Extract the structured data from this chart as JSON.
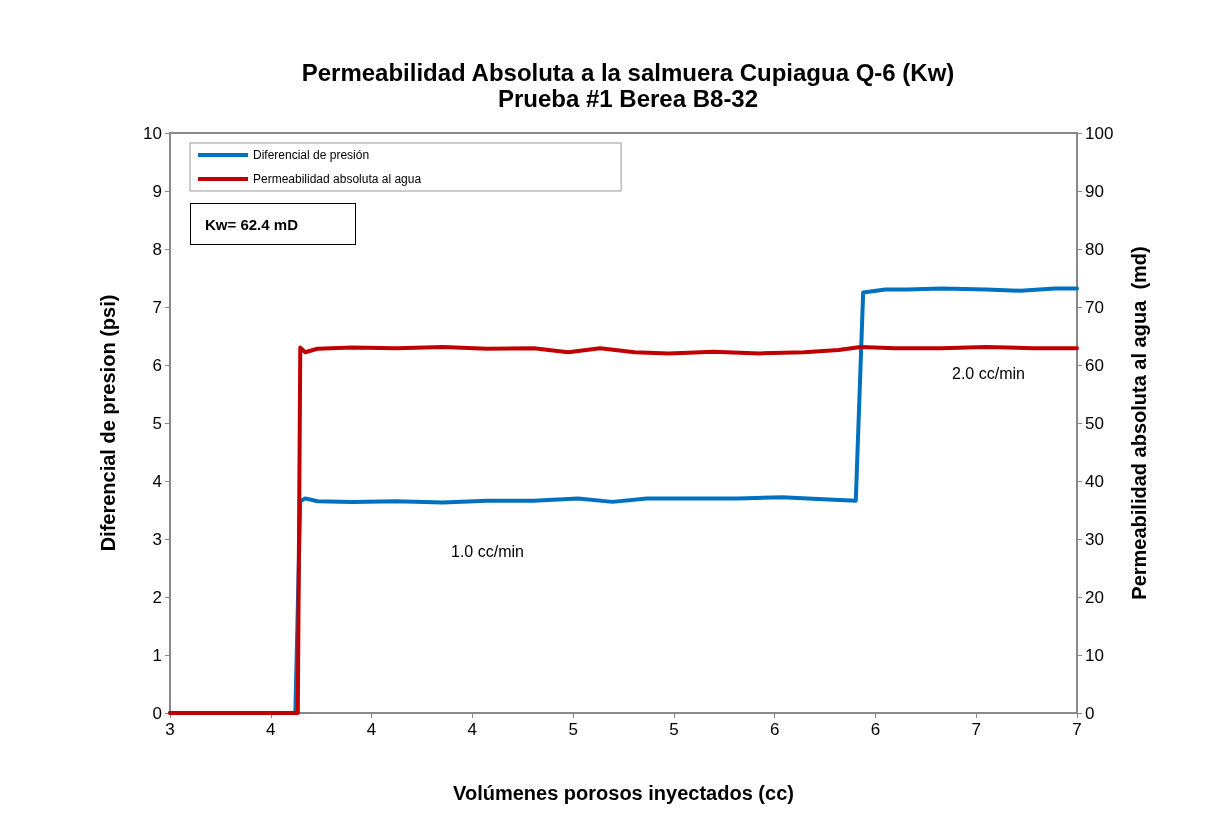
{
  "chart_data": {
    "type": "line",
    "title": "Permeabilidad Absoluta a la salmuera Cupiagua Q-6 (Kw)",
    "subtitle": "Prueba #1 Berea B8-32",
    "xlabel": "Volúmenes porosos inyectados (cc)",
    "ylabel": "Diferencial de presion (psi)",
    "y2label": "Permeabilidad absoluta al agua  (md)",
    "xlim": [
      3.25,
      6.94
    ],
    "xticks": [
      {
        "value": 3.25,
        "label": "3"
      },
      {
        "value": 3.66,
        "label": "4"
      },
      {
        "value": 4.07,
        "label": "4"
      },
      {
        "value": 4.48,
        "label": "4"
      },
      {
        "value": 4.89,
        "label": "5"
      },
      {
        "value": 5.3,
        "label": "5"
      },
      {
        "value": 5.71,
        "label": "6"
      },
      {
        "value": 6.12,
        "label": "6"
      },
      {
        "value": 6.53,
        "label": "7"
      },
      {
        "value": 6.94,
        "label": "7"
      }
    ],
    "ylim": [
      0,
      10
    ],
    "yticks": [
      0,
      1,
      2,
      3,
      4,
      5,
      6,
      7,
      8,
      9,
      10
    ],
    "y2lim": [
      0,
      100
    ],
    "y2ticks": [
      0,
      10,
      20,
      30,
      40,
      50,
      60,
      70,
      80,
      90,
      100
    ],
    "grid": false,
    "legend": "top left",
    "marker": "none",
    "line_style": "solid",
    "annotations": [
      "Kw= 62.4 mD",
      "1.0 cc/min",
      "2.0 cc/min"
    ],
    "series": [
      {
        "name": "Diferencial de presión",
        "color": "#0070c0",
        "x": [
          3.25,
          3.76,
          3.78,
          3.8,
          3.85,
          3.99,
          4.17,
          4.36,
          4.54,
          4.73,
          4.91,
          5.05,
          5.19,
          5.37,
          5.56,
          5.74,
          5.93,
          6.04,
          6.07,
          6.16,
          6.25,
          6.39,
          6.57,
          6.71,
          6.85,
          6.94
        ],
        "values": [
          0,
          0,
          3.65,
          3.7,
          3.65,
          3.64,
          3.65,
          3.63,
          3.66,
          3.66,
          3.7,
          3.64,
          3.7,
          3.7,
          3.7,
          3.72,
          3.68,
          3.66,
          7.25,
          7.3,
          7.3,
          7.32,
          7.3,
          7.28,
          7.32,
          7.32
        ]
      },
      {
        "name": "Permeabilidad absoluta al agua",
        "color": "#c00000",
        "axis": "y2",
        "x": [
          3.25,
          3.77,
          3.78,
          3.8,
          3.85,
          3.99,
          4.17,
          4.36,
          4.54,
          4.73,
          4.87,
          5.0,
          5.14,
          5.28,
          5.46,
          5.65,
          5.83,
          5.97,
          6.06,
          6.2,
          6.39,
          6.57,
          6.76,
          6.94
        ],
        "values": [
          0,
          0,
          63,
          62.2,
          62.8,
          63,
          62.9,
          63.1,
          62.8,
          62.9,
          62.2,
          62.9,
          62.2,
          62,
          62.3,
          62,
          62.2,
          62.6,
          63.1,
          62.9,
          62.9,
          63.1,
          62.9,
          62.9
        ]
      }
    ]
  }
}
